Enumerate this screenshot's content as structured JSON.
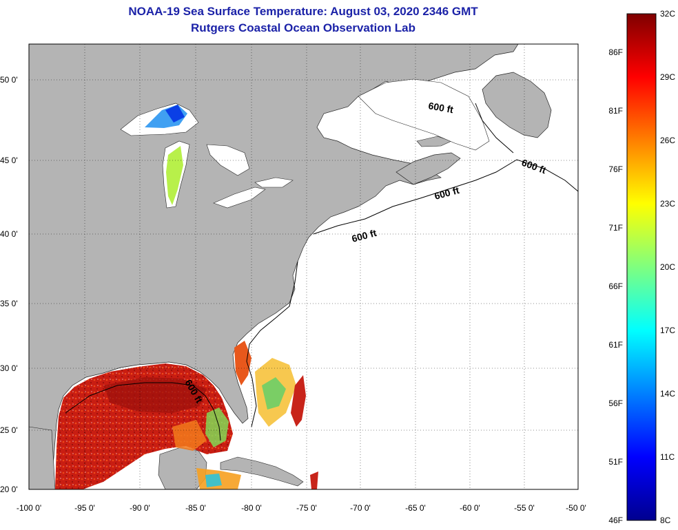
{
  "title": {
    "line1": "NOAA-19 Sea Surface Temperature:  August 03, 2020 2346 GMT",
    "line2": "Rutgers Coastal Ocean Observation Lab"
  },
  "map": {
    "lon_ticks": [
      "-100 0'",
      "-95 0'",
      "-90 0'",
      "-85 0'",
      "-80 0'",
      "-75 0'",
      "-70 0'",
      "-65 0'",
      "-60 0'",
      "-55 0'",
      "-50 0'"
    ],
    "lat_ticks": [
      "20 0'",
      "25 0'",
      "30 0'",
      "35 0'",
      "40 0'",
      "45 0'",
      "50 0'"
    ],
    "contour_label": "600 ft",
    "land_color": "#b4b4b4",
    "nodata_color": "#ffffff"
  },
  "colorbar": {
    "celsius": [
      "32C",
      "29C",
      "26C",
      "23C",
      "20C",
      "17C",
      "14C",
      "11C",
      "8C"
    ],
    "fahrenheit": [
      "86F",
      "81F",
      "76F",
      "71F",
      "66F",
      "61F",
      "56F",
      "51F",
      "46F"
    ],
    "min_c": 8,
    "max_c": 32
  }
}
